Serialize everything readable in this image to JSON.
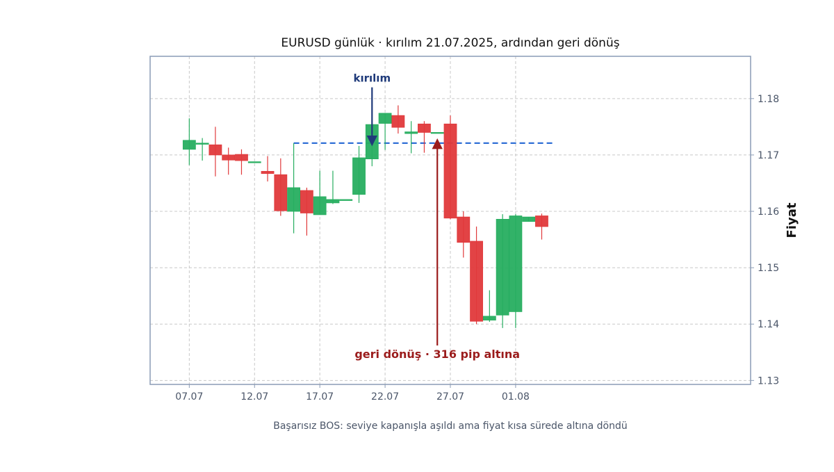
{
  "chart_data": {
    "type": "candlestick",
    "title": "EURUSD günlük · kırılım 21.07.2025, ardından geri dönüş",
    "caption": "Başarısız BOS: seviye kapanışla aşıldı ama fiyat kısa sürede altına döndü",
    "xlabel": "",
    "ylabel": "Fiyat",
    "ylim": [
      1.1293,
      1.1875
    ],
    "xlim": [
      "04.07",
      "19.08"
    ],
    "grid": true,
    "y_axis_side": "right",
    "y_ticks": [
      1.13,
      1.14,
      1.15,
      1.16,
      1.17,
      1.18
    ],
    "y_tick_labels": [
      "1.13",
      "1.14",
      "1.15",
      "1.16",
      "1.17",
      "1.18"
    ],
    "x_ticks": [
      "07.07",
      "12.07",
      "17.07",
      "22.07",
      "27.07",
      "01.08"
    ],
    "x_tick_labels": [
      "07.07",
      "12.07",
      "17.07",
      "22.07",
      "27.07",
      "01.08"
    ],
    "colors": {
      "up": "#27ae60",
      "down": "#e0393b",
      "level": "#2f6fd6",
      "break_annotation": "#1f3a7a",
      "pullback_annotation": "#9b1c1c",
      "frame": "#8a9bb5",
      "tick_text": "#4a5568",
      "title_text": "#111111",
      "caption_text": "#4a5568",
      "grid": "#c8c8c8"
    },
    "candles": [
      {
        "date": "07.07",
        "open": 1.171,
        "high": 1.1765,
        "low": 1.1682,
        "close": 1.1726
      },
      {
        "date": "08.07",
        "open": 1.1719,
        "high": 1.173,
        "low": 1.169,
        "close": 1.1721
      },
      {
        "date": "09.07",
        "open": 1.1718,
        "high": 1.175,
        "low": 1.1662,
        "close": 1.17
      },
      {
        "date": "10.07",
        "open": 1.17,
        "high": 1.1713,
        "low": 1.1665,
        "close": 1.1691
      },
      {
        "date": "11.07",
        "open": 1.1701,
        "high": 1.171,
        "low": 1.1665,
        "close": 1.169
      },
      {
        "date": "12.07",
        "open": 1.1688,
        "high": 1.1688,
        "low": 1.1688,
        "close": 1.1688
      },
      {
        "date": "13.07",
        "open": 1.1671,
        "high": 1.1698,
        "low": 1.1653,
        "close": 1.1667
      },
      {
        "date": "14.07",
        "open": 1.1665,
        "high": 1.1694,
        "low": 1.1592,
        "close": 1.1601
      },
      {
        "date": "15.07",
        "open": 1.16,
        "high": 1.1721,
        "low": 1.1561,
        "close": 1.1642
      },
      {
        "date": "16.07",
        "open": 1.1637,
        "high": 1.1642,
        "low": 1.1557,
        "close": 1.1597
      },
      {
        "date": "17.07",
        "open": 1.1594,
        "high": 1.1672,
        "low": 1.1594,
        "close": 1.1626
      },
      {
        "date": "18.07",
        "open": 1.1615,
        "high": 1.1672,
        "low": 1.1613,
        "close": 1.1621
      },
      {
        "date": "19.07",
        "open": 1.1621,
        "high": 1.1621,
        "low": 1.1621,
        "close": 1.1621
      },
      {
        "date": "20.07",
        "open": 1.163,
        "high": 1.1716,
        "low": 1.1615,
        "close": 1.1695
      },
      {
        "date": "21.07",
        "open": 1.1693,
        "high": 1.1754,
        "low": 1.168,
        "close": 1.1754
      },
      {
        "date": "22.07",
        "open": 1.1756,
        "high": 1.1774,
        "low": 1.1709,
        "close": 1.1774
      },
      {
        "date": "23.07",
        "open": 1.177,
        "high": 1.1788,
        "low": 1.1738,
        "close": 1.1749
      },
      {
        "date": "24.07",
        "open": 1.1738,
        "high": 1.176,
        "low": 1.1703,
        "close": 1.1741
      },
      {
        "date": "25.07",
        "open": 1.1755,
        "high": 1.176,
        "low": 1.1704,
        "close": 1.174
      },
      {
        "date": "26.07",
        "open": 1.174,
        "high": 1.174,
        "low": 1.174,
        "close": 1.174
      },
      {
        "date": "27.07",
        "open": 1.1755,
        "high": 1.177,
        "low": 1.1586,
        "close": 1.1588
      },
      {
        "date": "28.07",
        "open": 1.159,
        "high": 1.16,
        "low": 1.1518,
        "close": 1.1545
      },
      {
        "date": "29.07",
        "open": 1.1547,
        "high": 1.1573,
        "low": 1.14,
        "close": 1.1405
      },
      {
        "date": "30.07",
        "open": 1.1407,
        "high": 1.146,
        "low": 1.1404,
        "close": 1.1414
      },
      {
        "date": "31.07",
        "open": 1.1416,
        "high": 1.1595,
        "low": 1.1393,
        "close": 1.1586
      },
      {
        "date": "01.08",
        "open": 1.1422,
        "high": 1.1595,
        "low": 1.1393,
        "close": 1.1592
      },
      {
        "date": "02.08",
        "open": 1.1582,
        "high": 1.159,
        "low": 1.1582,
        "close": 1.159
      },
      {
        "date": "03.08",
        "open": 1.1592,
        "high": 1.1596,
        "low": 1.155,
        "close": 1.1573
      }
    ],
    "level": {
      "value": 1.1721,
      "from": "15.07",
      "to": "04.08"
    },
    "annotations": [
      {
        "id": "break",
        "text": "kırılım",
        "date": "21.07",
        "text_y": 1.183,
        "arrow_from_y": 1.182,
        "arrow_to_y": 1.1725
      },
      {
        "id": "pullback",
        "text": "geri dönüş · 316 pip altına",
        "date": "26.07",
        "text_y": 1.134,
        "arrow_from_y": 1.1362,
        "arrow_to_y": 1.172
      }
    ]
  }
}
